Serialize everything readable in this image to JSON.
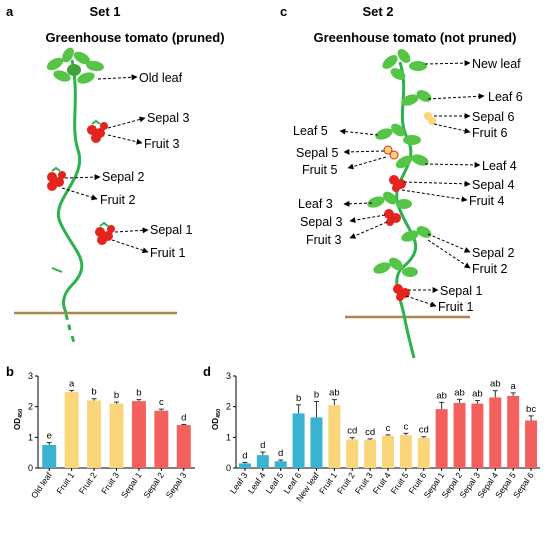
{
  "colors": {
    "blue": "#39b3d1",
    "yellow": "#fbd57a",
    "red": "#f4605e",
    "stem": "#2bb24c",
    "leaf": "#55c447",
    "fruit": "#e3241f",
    "ground": "#a8894b"
  },
  "panel_a": {
    "label": "a",
    "set_title": "Set 1",
    "subtitle": "Greenhouse tomato (pruned)",
    "annotations": [
      "Old leaf",
      "Sepal 3",
      "Fruit 3",
      "Sepal 2",
      "Fruit 2",
      "Sepal 1",
      "Fruit 1"
    ]
  },
  "panel_c": {
    "label": "c",
    "set_title": "Set 2",
    "subtitle": "Greenhouse tomato (not pruned)",
    "annotations_right": [
      "New leaf",
      "Leaf 6",
      "Sepal 6",
      "Fruit 6",
      "Leaf 4",
      "Sepal 4",
      "Fruit 4",
      "Sepal 2",
      "Fruit 2",
      "Sepal 1",
      "Fruit 1"
    ],
    "annotations_left": [
      "Leaf 5",
      "Sepal 5",
      "Fruit 5",
      "Leaf 3",
      "Sepal 3",
      "Fruit 3"
    ]
  },
  "chart_data": [
    {
      "panel": "b",
      "type": "bar",
      "ylabel": "OD",
      "ylabel_sub": "450",
      "ylim": [
        0,
        3
      ],
      "yticks": [
        "0",
        "1",
        "2",
        "3"
      ],
      "categories": [
        "Old leaf",
        "Fruit 1",
        "Fruit 2",
        "Fruit 3",
        "Sepal 1",
        "Sepal 2",
        "Sepal 3"
      ],
      "values": [
        0.75,
        2.48,
        2.2,
        2.1,
        2.18,
        1.87,
        1.4
      ],
      "errors": [
        0.08,
        0.05,
        0.06,
        0.05,
        0.05,
        0.05,
        0.02
      ],
      "letters": [
        "e",
        "a",
        "b",
        "b",
        "b",
        "c",
        "d"
      ],
      "bar_colors": [
        "#39b3d1",
        "#fbd57a",
        "#fbd57a",
        "#fbd57a",
        "#f4605e",
        "#f4605e",
        "#f4605e"
      ]
    },
    {
      "panel": "d",
      "type": "bar",
      "ylabel": "OD",
      "ylabel_sub": "450",
      "ylim": [
        0,
        3
      ],
      "yticks": [
        "0",
        "1",
        "2",
        "3"
      ],
      "categories": [
        "Leaf 3",
        "Leaf 4",
        "Leaf 5",
        "Leaf 6",
        "New leaf",
        "Fruit 1",
        "Fruit 2",
        "Fruit 3",
        "Fruit 4",
        "Fruit 5",
        "Fruit 6",
        "Sepal 1",
        "Sepal 2",
        "Sepal 3",
        "Sepal 4",
        "Sepal 5",
        "Sepal 6"
      ],
      "values": [
        0.15,
        0.42,
        0.22,
        1.78,
        1.65,
        2.05,
        0.93,
        0.92,
        1.05,
        1.07,
        0.98,
        1.92,
        2.12,
        2.1,
        2.3,
        2.35,
        1.55
      ],
      "errors": [
        0.03,
        0.1,
        0.04,
        0.28,
        0.52,
        0.18,
        0.06,
        0.03,
        0.03,
        0.06,
        0.04,
        0.22,
        0.12,
        0.1,
        0.22,
        0.1,
        0.15
      ],
      "letters": [
        "d",
        "d",
        "d",
        "b",
        "b",
        "ab",
        "cd",
        "cd",
        "c",
        "c",
        "cd",
        "ab",
        "ab",
        "ab",
        "ab",
        "a",
        "bc"
      ],
      "bar_colors": [
        "#39b3d1",
        "#39b3d1",
        "#39b3d1",
        "#39b3d1",
        "#39b3d1",
        "#fbd57a",
        "#fbd57a",
        "#fbd57a",
        "#fbd57a",
        "#fbd57a",
        "#fbd57a",
        "#f4605e",
        "#f4605e",
        "#f4605e",
        "#f4605e",
        "#f4605e",
        "#f4605e"
      ]
    }
  ]
}
